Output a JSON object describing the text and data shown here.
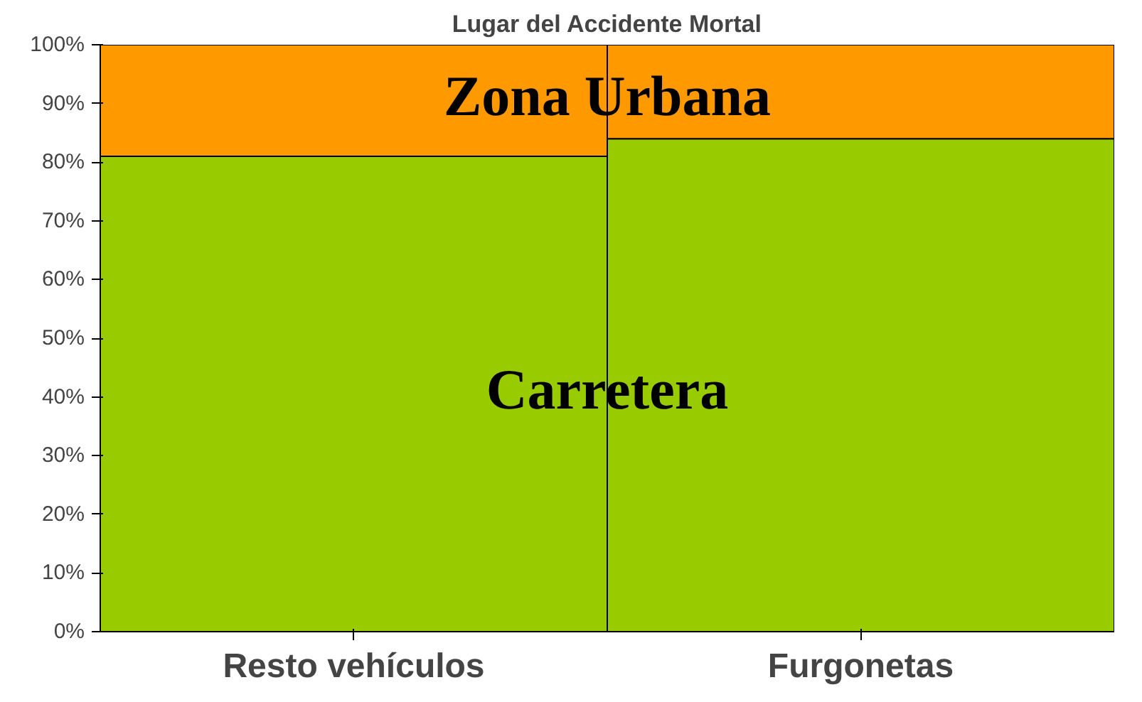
{
  "chart_data": {
    "type": "bar",
    "title": "Lugar del Accidente Mortal",
    "categories": [
      "Resto vehículos",
      "Furgonetas"
    ],
    "stacked": true,
    "series": [
      {
        "name": "Carretera",
        "color": "#99cc00",
        "values": [
          81,
          84
        ]
      },
      {
        "name": "Zona Urbana",
        "color": "#ff9900",
        "values": [
          19,
          16
        ]
      }
    ],
    "ylim": [
      0,
      100
    ],
    "yticks": [
      {
        "value": 0,
        "label": "0%"
      },
      {
        "value": 10,
        "label": "10%"
      },
      {
        "value": 20,
        "label": "20%"
      },
      {
        "value": 30,
        "label": "30%"
      },
      {
        "value": 40,
        "label": "40%"
      },
      {
        "value": 50,
        "label": "50%"
      },
      {
        "value": 60,
        "label": "60%"
      },
      {
        "value": 70,
        "label": "70%"
      },
      {
        "value": 80,
        "label": "80%"
      },
      {
        "value": 90,
        "label": "90%"
      },
      {
        "value": 100,
        "label": "100%"
      }
    ]
  }
}
